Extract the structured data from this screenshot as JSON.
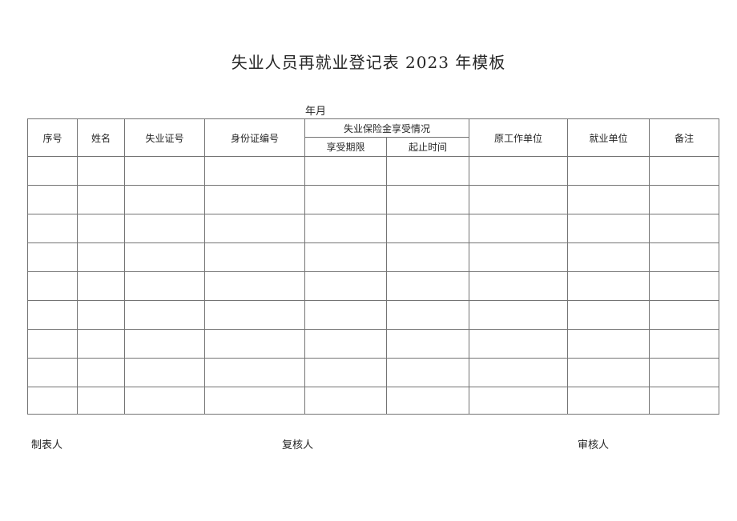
{
  "document": {
    "title": "失业人员再就业登记表 2023 年模板",
    "date_label": "年月"
  },
  "table": {
    "header": {
      "seq": "序号",
      "name": "姓名",
      "unemployment_cert_no": "失业证号",
      "id_card_no": "身份证编号",
      "insurance_group": "失业保险金享受情况",
      "benefit_period": "享受期限",
      "start_end_time": "起止时间",
      "former_work_unit": "原工作单位",
      "employment_unit": "就业单位",
      "remarks": "备注"
    },
    "body": {
      "row_count": 9,
      "column_count": 9,
      "cell_text": ""
    }
  },
  "footer": {
    "preparer_label": "制表人",
    "reviewer_label": "复核人",
    "auditor_label": "审核人"
  },
  "colors": {
    "border": "#747474",
    "text": "#262626",
    "background": "#ffffff"
  }
}
